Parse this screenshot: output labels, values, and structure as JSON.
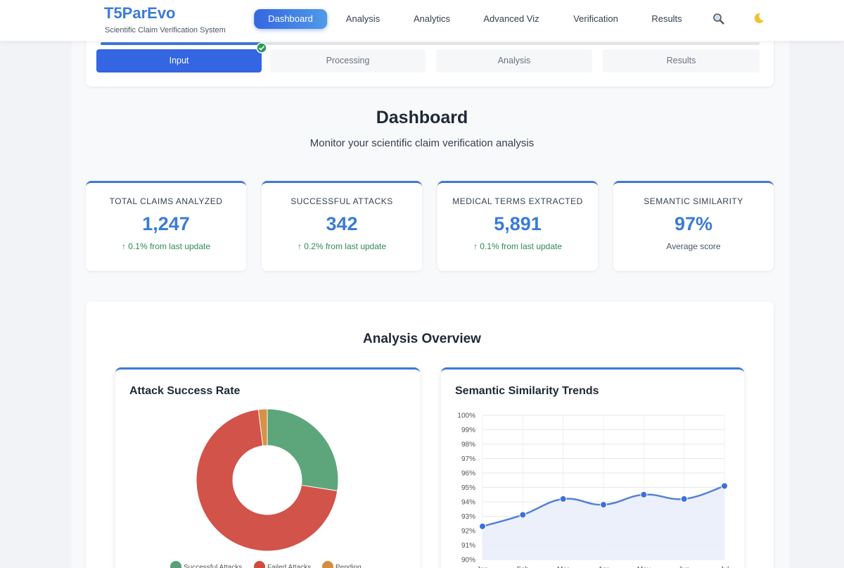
{
  "header": {
    "brand": "T5ParEvo",
    "tagline": "Scientific Claim Verification System",
    "nav": [
      "Dashboard",
      "Analysis",
      "Analytics",
      "Advanced Viz",
      "Verification",
      "Results"
    ]
  },
  "steps": [
    "Input",
    "Processing",
    "Analysis",
    "Results"
  ],
  "page": {
    "title": "Dashboard",
    "subtitle": "Monitor your scientific claim verification analysis"
  },
  "stats": [
    {
      "label": "TOTAL CLAIMS ANALYZED",
      "value": "1,247",
      "note": "↑ 0.1% from last update"
    },
    {
      "label": "SUCCESSFUL ATTACKS",
      "value": "342",
      "note": "↑ 0.2% from last update"
    },
    {
      "label": "MEDICAL TERMS EXTRACTED",
      "value": "5,891",
      "note": "↑ 0.1% from last update"
    },
    {
      "label": "SEMANTIC SIMILARITY",
      "value": "97%",
      "note": "Average score"
    }
  ],
  "section_title": "Analysis Overview",
  "chart_data": [
    {
      "type": "pie",
      "title": "Attack Success Rate",
      "categories": [
        "Successful Attacks",
        "Failed Attacks",
        "Pending"
      ],
      "values": [
        342,
        880,
        25
      ],
      "colors": [
        "#55a274",
        "#d04a40",
        "#d98b3c"
      ],
      "donut": true
    },
    {
      "type": "line",
      "title": "Semantic Similarity Trends",
      "categories": [
        "Jan",
        "Feb",
        "Mar",
        "Apr",
        "May",
        "Jun",
        "Jul"
      ],
      "values": [
        92.3,
        93.1,
        94.2,
        93.8,
        94.5,
        94.2,
        95.1
      ],
      "color": "#5580d8",
      "fill": "#e9eefb",
      "ylim": [
        90,
        100
      ],
      "yticks": [
        {
          "value": 90,
          "label": "90%"
        },
        {
          "value": 91,
          "label": "91%"
        },
        {
          "value": 92,
          "label": "92%"
        },
        {
          "value": 93,
          "label": "93%"
        },
        {
          "value": 94,
          "label": "94%"
        },
        {
          "value": 95,
          "label": "95%"
        },
        {
          "value": 96,
          "label": "96%"
        },
        {
          "value": 97,
          "label": "97%"
        },
        {
          "value": 98,
          "label": "98%"
        },
        {
          "value": 99,
          "label": "99%"
        },
        {
          "value": 100,
          "label": "100%"
        }
      ],
      "grid": true
    }
  ]
}
